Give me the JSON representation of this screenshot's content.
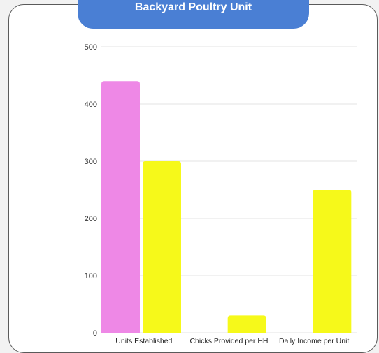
{
  "chart_data": {
    "type": "bar",
    "title": "Backyard Poultry Unit",
    "categories": [
      "Units Established",
      "Chicks Provided per HH",
      "Daily Income per Unit"
    ],
    "series": [
      {
        "color": "#ee88e6",
        "values": [
          440,
          null,
          null
        ]
      },
      {
        "color": "#f6f91a",
        "values": [
          300,
          30,
          250
        ]
      }
    ],
    "ylim": [
      0,
      500
    ],
    "yticks": [
      0,
      100,
      200,
      300,
      400,
      500
    ],
    "grid": true
  },
  "colors": {
    "title_background": "#4a7fd4",
    "grid": "#e3e3e3"
  }
}
